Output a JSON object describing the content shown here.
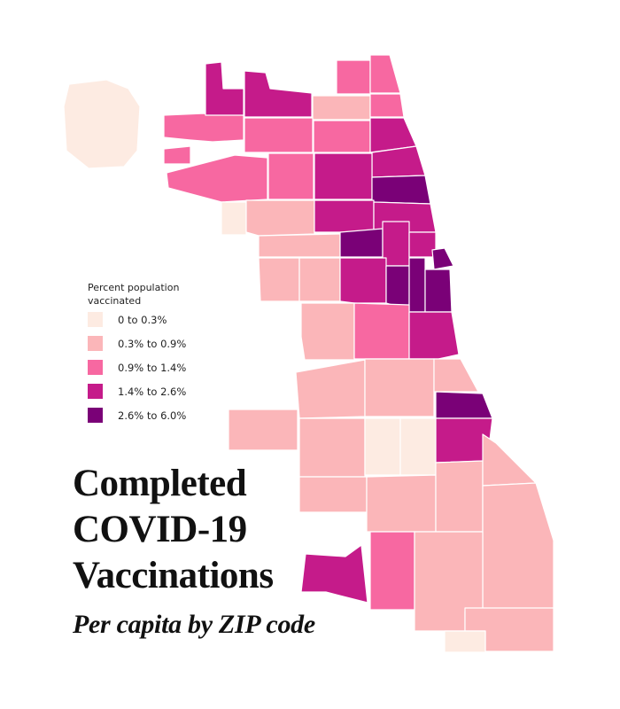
{
  "title_lines": [
    "Completed",
    "COVID-19",
    "Vaccinations"
  ],
  "subtitle": "Per capita by ZIP code",
  "legend": {
    "title": "Percent population vaccinated",
    "items": [
      {
        "label": "0 to 0.3%",
        "color": "#fdebe2"
      },
      {
        "label": "0.3% to 0.9%",
        "color": "#fbb6b9"
      },
      {
        "label": "0.9% to 1.4%",
        "color": "#f768a1"
      },
      {
        "label": "1.4% to 2.6%",
        "color": "#c51b8a"
      },
      {
        "label": "2.6% to 6.0%",
        "color": "#7a0177"
      }
    ]
  },
  "map": {
    "region": "Chicago",
    "unit": "ZIP code",
    "metric": "Percent population vaccinated (completed)"
  }
}
